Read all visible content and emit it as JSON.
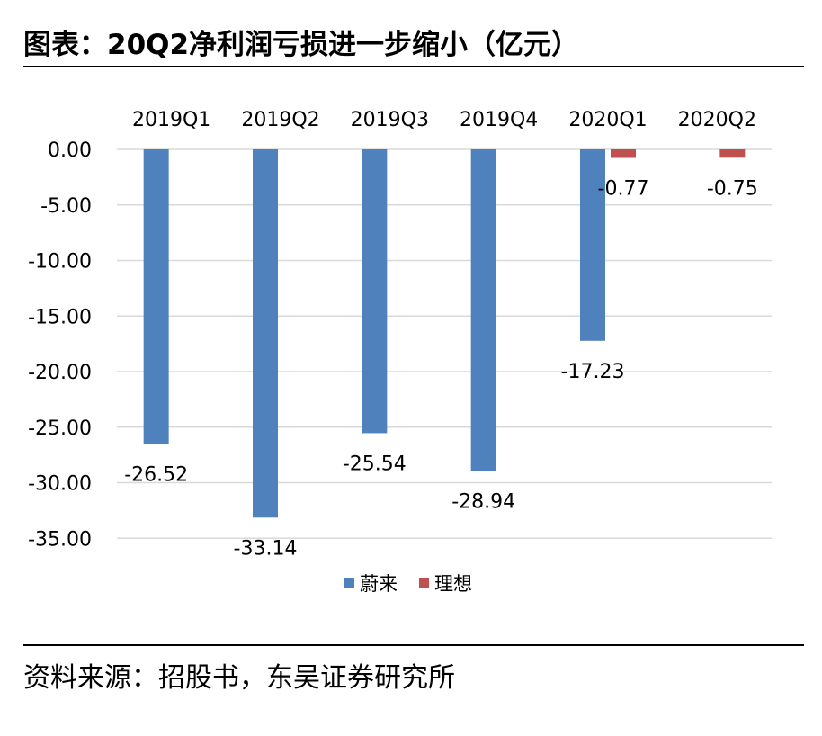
{
  "title": "图表：20Q2净利润亏损进一步缩小（亿元）",
  "source": "资料来源：招股书，东吴证券研究所",
  "colors": {
    "nio": "#4f81bd",
    "li": "#c0504d",
    "grid": "#d9d9d9"
  },
  "chart_data": {
    "type": "bar",
    "categories": [
      "2019Q1",
      "2019Q2",
      "2019Q3",
      "2019Q4",
      "2020Q1",
      "2020Q2"
    ],
    "series": [
      {
        "name": "蔚来",
        "values": [
          -26.52,
          -33.14,
          -25.54,
          -28.94,
          -17.23,
          null
        ],
        "labels": [
          "-26.52",
          "-33.14",
          "-25.54",
          "-28.94",
          "-17.23",
          ""
        ]
      },
      {
        "name": "理想",
        "values": [
          null,
          null,
          null,
          null,
          -0.77,
          -0.75
        ],
        "labels": [
          "",
          "",
          "",
          "",
          "-0.77",
          "-0.75"
        ]
      }
    ],
    "yticks": [
      "0.00",
      "-5.00",
      "-10.00",
      "-15.00",
      "-20.00",
      "-25.00",
      "-30.00",
      "-35.00"
    ],
    "ylim": [
      -35,
      0
    ],
    "grid": true,
    "legend": "bottom",
    "xaxis_position": "top"
  }
}
